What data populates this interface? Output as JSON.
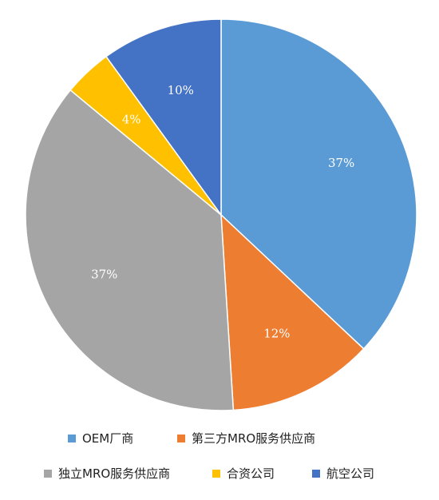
{
  "chart_data": {
    "type": "pie",
    "title": "",
    "categories": [
      "OEM厂商",
      "第三方MRO服务供应商",
      "独立MRO服务供应商",
      "合资公司",
      "航空公司"
    ],
    "values": [
      37,
      12,
      37,
      4,
      10
    ],
    "labels": [
      "37%",
      "12%",
      "37%",
      "4%",
      "10%"
    ],
    "colors": [
      "#5b9bd5",
      "#ed7d31",
      "#a5a5a5",
      "#ffc000",
      "#4472c4"
    ],
    "start_angle": "12 o'clock",
    "direction": "clockwise",
    "legend_position": "bottom"
  }
}
